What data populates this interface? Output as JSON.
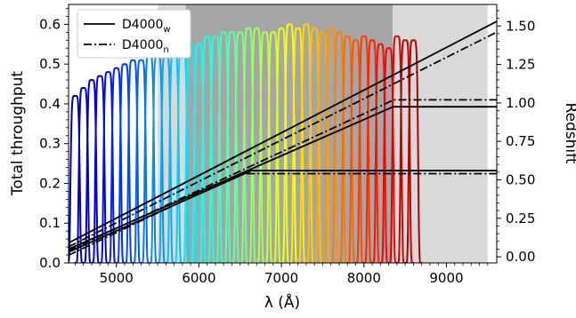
{
  "chart_data": {
    "type": "line",
    "title": "",
    "xlabel": "λ (Å)",
    "ylabel": "Total throughput",
    "y2label": "Redshift",
    "xlim": [
      4420,
      9610
    ],
    "ylim": [
      0.0,
      0.65
    ],
    "y2lim": [
      -0.04,
      1.64
    ],
    "xticks": [
      5000,
      6000,
      7000,
      8000,
      9000
    ],
    "yticks": [
      0.0,
      0.1,
      0.2,
      0.3,
      0.4,
      0.5,
      0.6
    ],
    "y2ticks": [
      0.0,
      0.25,
      0.5,
      0.75,
      1.0,
      1.25,
      1.5
    ],
    "xtick_labels": [
      "5000",
      "6000",
      "7000",
      "8000",
      "9000"
    ],
    "ytick_labels": [
      "0.0",
      "0.1",
      "0.2",
      "0.3",
      "0.4",
      "0.5",
      "0.6"
    ],
    "y2tick_labels": [
      "0.00",
      "0.25",
      "0.50",
      "0.75",
      "1.00",
      "1.25",
      "1.50"
    ],
    "grid": false,
    "legend_position": "top-left",
    "legend": [
      {
        "name": "D4000",
        "subscript": "w",
        "style": "solid"
      },
      {
        "name": "D4000",
        "subscript": "n",
        "style": "dashdot"
      }
    ],
    "shaded_regions": [
      {
        "x": [
          5500,
          5840
        ],
        "color": "#d9d9d9"
      },
      {
        "x": [
          5840,
          8350
        ],
        "color": "#a6a6a6"
      },
      {
        "x": [
          8350,
          9500
        ],
        "color": "#d9d9d9"
      }
    ],
    "filters": {
      "count": 42,
      "center_start": 4500,
      "spacing": 100,
      "peaks": [
        0.42,
        0.44,
        0.46,
        0.47,
        0.48,
        0.49,
        0.5,
        0.51,
        0.51,
        0.52,
        0.52,
        0.52,
        0.53,
        0.54,
        0.55,
        0.55,
        0.57,
        0.57,
        0.58,
        0.58,
        0.58,
        0.59,
        0.59,
        0.58,
        0.58,
        0.59,
        0.6,
        0.59,
        0.6,
        0.59,
        0.58,
        0.59,
        0.58,
        0.57,
        0.56,
        0.57,
        0.56,
        0.55,
        0.54,
        0.57,
        0.56,
        0.56
      ],
      "colormap": "jet"
    },
    "redshift_tracks": {
      "x_range": [
        4420,
        9610
      ],
      "D4000_w": [
        {
          "z_start": 0.09,
          "z_end": 1.53,
          "z_cap": 1.53
        },
        {
          "z_start": 0.05,
          "z_end": 1.27,
          "z_cap": 0.975
        },
        {
          "z_start": 0.03,
          "z_end": 1.27,
          "z_cap": 0.56
        }
      ],
      "D4000_n": [
        {
          "z_start": 0.065,
          "z_end": 1.46,
          "z_cap": 1.46
        },
        {
          "z_start": 0.04,
          "z_end": 1.33,
          "z_cap": 1.02
        },
        {
          "z_start": 0.01,
          "z_end": 1.33,
          "z_cap": 0.54
        }
      ]
    }
  }
}
